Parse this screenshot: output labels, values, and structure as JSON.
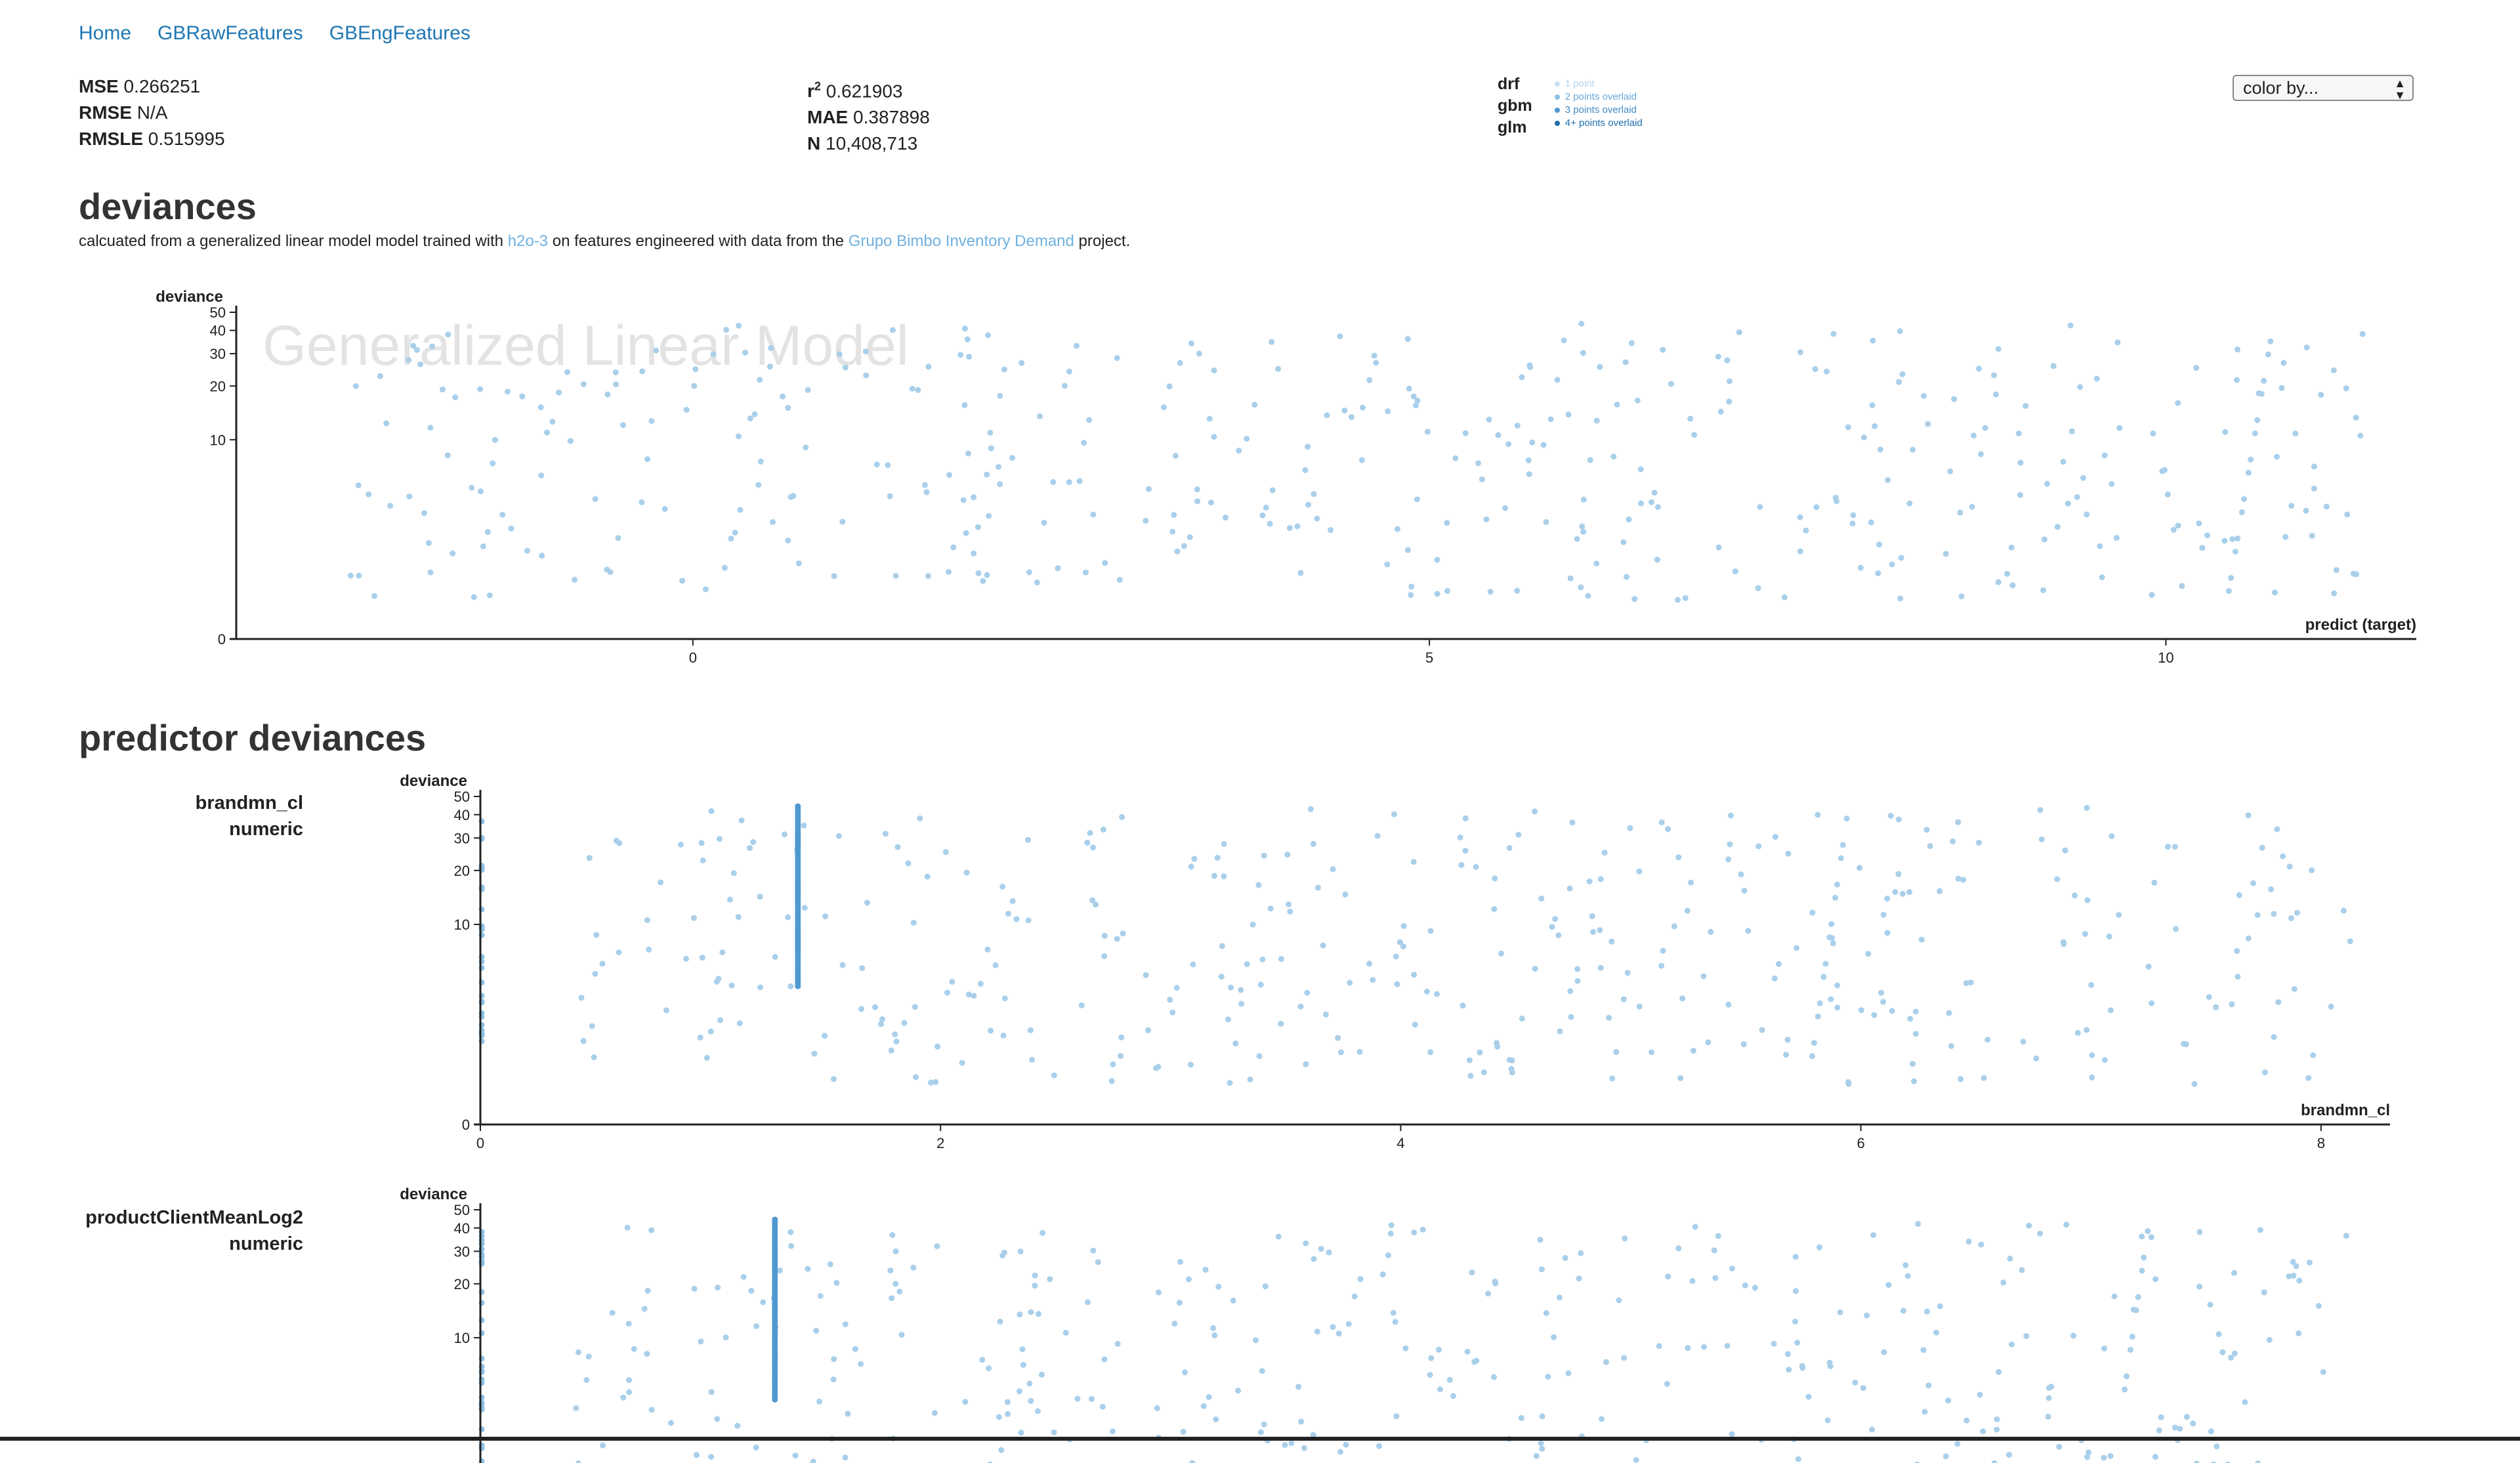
{
  "nav": [
    "Home",
    "GBRawFeatures",
    "GBEngFeatures"
  ],
  "metrics": {
    "mse_label": "MSE",
    "mse": "0.266251",
    "rmse_label": "RMSE",
    "rmse": "N/A",
    "rmsle_label": "RMSLE",
    "rmsle": "0.515995",
    "r2_label": "r",
    "r2_sup": "2",
    "r2": "0.621903",
    "mae_label": "MAE",
    "mae": "0.387898",
    "n_label": "N",
    "n": "10,408,713"
  },
  "legend": {
    "models": [
      "drf",
      "gbm",
      "glm"
    ],
    "overlay": [
      "1  point",
      "2  points overlaid",
      "3  points overlaid",
      "4+ points overlaid"
    ],
    "overlay_colors": [
      "#c6e0f2",
      "#8cc0e4",
      "#4f99d0",
      "#1f6fae"
    ]
  },
  "color_select": {
    "value": "color by..."
  },
  "deviances": {
    "heading": "deviances",
    "subtitle": {
      "part1": "calcuated from a generalized linear model model trained with ",
      "link1": "h2o-3",
      "part2": " on features engineered with data from the ",
      "link2": "Grupo Bimbo Inventory Demand",
      "part3": " project."
    },
    "watermark": "Generalized Linear Model"
  },
  "predictor": {
    "heading": "predictor deviances",
    "features": [
      {
        "name": "brandmn_cl",
        "type": "numeric"
      },
      {
        "name": "productClientMeanLog2",
        "type": "numeric"
      }
    ]
  },
  "chart_data": [
    {
      "type": "scatter",
      "title": "",
      "xlabel": "predict (target)",
      "ylabel": "deviance",
      "xlim": [
        -3.1,
        11.7
      ],
      "yscale": "log",
      "yticks": [
        0,
        10,
        20,
        30,
        40,
        50
      ],
      "xticks": [
        0,
        5,
        10
      ],
      "point_color": "#a9cfea",
      "seed": 11,
      "count": 420
    },
    {
      "type": "scatter",
      "title": "",
      "xlabel": "brandmn_cl",
      "ylabel": "deviance",
      "xlim": [
        0,
        8.3
      ],
      "yscale": "log",
      "yticks": [
        0,
        10,
        20,
        30,
        40,
        50
      ],
      "xticks": [
        0,
        2,
        4,
        6,
        8
      ],
      "point_color": "#a9cfea",
      "dense_column_x": 1.38,
      "seed": 23,
      "count": 380
    },
    {
      "type": "scatter",
      "title": "",
      "xlabel": "productClientMeanLog2",
      "ylabel": "deviance",
      "xlim": [
        0,
        8.3
      ],
      "yscale": "log",
      "yticks": [
        10,
        20,
        30,
        40,
        50
      ],
      "xticks": [],
      "point_color": "#a9cfea",
      "dense_column_x": 1.28,
      "seed": 37,
      "count": 380
    }
  ]
}
